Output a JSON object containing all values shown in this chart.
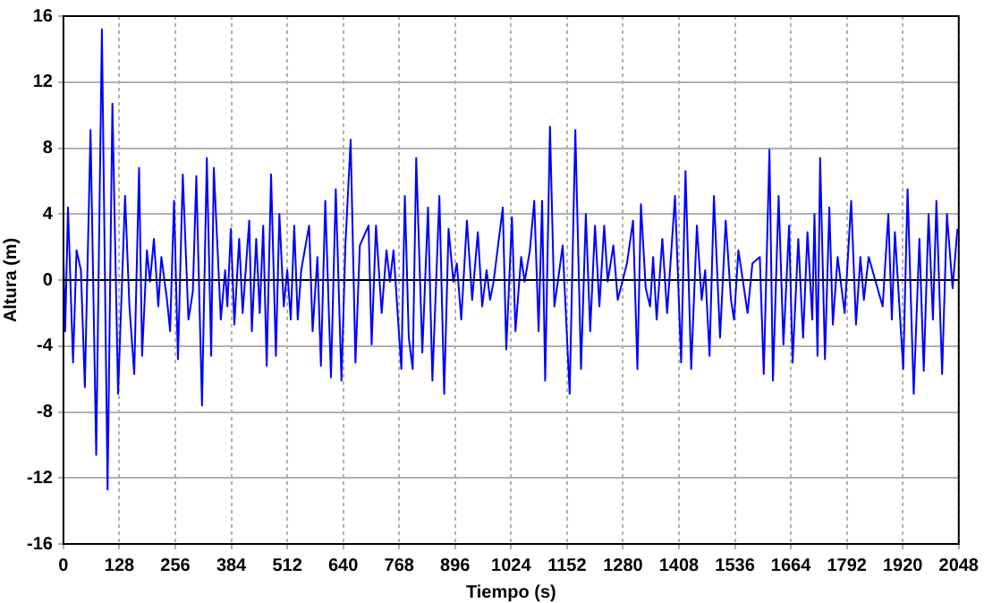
{
  "chart_data": {
    "type": "line",
    "xlabel": "Tiempo (s)",
    "ylabel": "Altura (m)",
    "x": [
      0,
      4,
      10.5,
      22,
      30,
      40,
      49,
      62,
      75,
      88,
      101,
      112,
      125,
      141,
      151,
      162,
      173,
      180,
      191,
      198,
      207,
      217,
      224,
      237,
      244,
      253,
      262,
      273,
      286,
      296,
      304,
      317,
      328,
      338,
      344,
      360,
      370,
      375,
      383,
      391,
      402,
      410,
      425,
      431,
      441,
      449,
      457,
      465,
      475,
      486,
      494,
      504,
      512,
      520,
      528,
      536,
      544,
      562,
      570,
      581,
      589,
      599,
      612,
      623,
      636,
      645,
      657,
      668,
      678,
      698,
      705,
      715,
      728,
      739,
      747,
      755,
      773,
      781,
      790,
      799,
      807,
      821,
      834,
      844,
      860,
      871,
      881,
      892,
      900,
      910,
      923,
      935,
      948,
      958,
      968,
      976,
      984,
      1005,
      1013,
      1026,
      1034,
      1047,
      1055,
      1067,
      1077,
      1087,
      1095,
      1102,
      1113,
      1123,
      1131,
      1142,
      1158,
      1171,
      1184,
      1195,
      1205,
      1216,
      1226,
      1237,
      1245,
      1258,
      1268,
      1289,
      1303,
      1313,
      1321,
      1332,
      1342,
      1349,
      1357,
      1370,
      1381,
      1399,
      1413,
      1423,
      1436,
      1449,
      1460,
      1468,
      1478,
      1488,
      1502,
      1515,
      1527,
      1534,
      1544,
      1565,
      1576,
      1593,
      1602,
      1615,
      1623,
      1636,
      1647,
      1660,
      1668,
      1681,
      1692,
      1702,
      1713,
      1718,
      1725,
      1731,
      1742,
      1752,
      1760,
      1771,
      1787,
      1802,
      1813,
      1823,
      1831,
      1842,
      1874,
      1887,
      1895,
      1902,
      1921,
      1931,
      1945,
      1958,
      1968,
      1979,
      1989,
      1997,
      2010,
      2021,
      2034,
      2045
    ],
    "series": [
      {
        "color": "#0000ff",
        "values": [
          1.5,
          -3.1,
          4.4,
          -5.0,
          1.8,
          0.6,
          -6.5,
          9.1,
          -10.6,
          15.2,
          -12.7,
          10.7,
          -6.9,
          5.1,
          -1.6,
          -5.7,
          6.8,
          -4.6,
          1.8,
          -0.1,
          2.5,
          -1.6,
          1.4,
          -1.2,
          -3.1,
          4.8,
          -4.8,
          6.4,
          -2.4,
          -0.7,
          6.3,
          -7.6,
          7.4,
          -4.6,
          6.8,
          -2.4,
          0.6,
          -1.6,
          3.1,
          -2.7,
          2.5,
          -2.0,
          3.6,
          -3.1,
          2.5,
          -2.0,
          3.3,
          -5.2,
          6.4,
          -4.6,
          4.0,
          -1.6,
          0.6,
          -2.4,
          3.3,
          -2.4,
          0.6,
          3.3,
          -3.1,
          1.4,
          -5.2,
          4.8,
          -5.9,
          5.5,
          -6.1,
          2.1,
          8.5,
          -5.0,
          2.1,
          3.3,
          -3.9,
          3.3,
          -2.0,
          1.8,
          -0.1,
          1.8,
          -5.4,
          5.1,
          -3.5,
          -5.4,
          7.4,
          -4.4,
          4.4,
          -6.1,
          5.1,
          -6.9,
          3.1,
          -0.1,
          1.0,
          -2.4,
          3.6,
          -1.2,
          2.9,
          -1.6,
          0.6,
          -1.2,
          -0.1,
          4.4,
          -4.2,
          3.8,
          -3.1,
          1.4,
          -0.1,
          1.8,
          4.8,
          -3.1,
          4.8,
          -6.1,
          9.3,
          -1.6,
          -0.1,
          2.1,
          -6.9,
          9.1,
          -5.4,
          4.0,
          -3.1,
          3.3,
          -1.6,
          3.3,
          -0.1,
          2.1,
          -1.2,
          1.0,
          3.6,
          -5.4,
          4.6,
          -0.5,
          -1.6,
          1.4,
          -2.4,
          2.5,
          -2.0,
          5.1,
          -5.0,
          6.6,
          -5.4,
          3.3,
          -1.2,
          0.6,
          -4.6,
          5.1,
          -3.5,
          3.6,
          -1.2,
          -2.4,
          1.8,
          -2.0,
          1.0,
          1.4,
          -5.7,
          7.9,
          -6.1,
          5.1,
          -3.9,
          3.3,
          -5.0,
          2.5,
          -3.5,
          2.9,
          -2.4,
          4.0,
          -4.6,
          7.4,
          -4.8,
          4.4,
          -2.7,
          1.4,
          -2.0,
          4.8,
          -2.7,
          1.4,
          -1.2,
          1.4,
          -1.6,
          4.0,
          -2.4,
          2.9,
          -5.4,
          5.5,
          -6.9,
          2.5,
          -5.5,
          4.0,
          -2.4,
          4.8,
          -5.7,
          4.0,
          -0.5,
          3.1
        ]
      }
    ],
    "xlim": [
      0,
      2048
    ],
    "xticks": [
      0,
      128,
      256,
      384,
      512,
      640,
      768,
      896,
      1024,
      1152,
      1280,
      1408,
      1536,
      1664,
      1792,
      1920,
      2048
    ],
    "ylim": [
      -16,
      16
    ],
    "yticks": [
      -16,
      -12,
      -8,
      -4,
      0,
      4,
      8,
      12,
      16
    ],
    "ref_lines": [
      {
        "axis": "y",
        "value": 0,
        "color": "#000000"
      }
    ],
    "grid": true,
    "legend": false,
    "marker": "none",
    "line_style": "solid"
  }
}
